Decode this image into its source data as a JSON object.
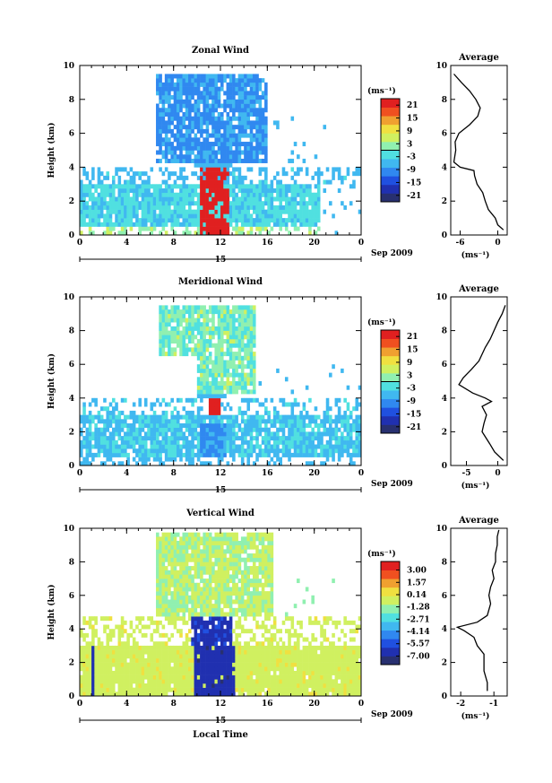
{
  "x_axis": {
    "ticks": [
      "0",
      "4",
      "8",
      "12",
      "16",
      "20",
      "0"
    ],
    "date_day": "15",
    "date_label": "Sep 2009",
    "xlabel": "Local Time"
  },
  "height_axis": {
    "label": "Height (km)",
    "ticks": [
      "0",
      "2",
      "4",
      "6",
      "8",
      "10"
    ]
  },
  "colorbar_unit": "(ms⁻¹)",
  "avg_title": "Average",
  "avg_unit": "(ms⁻¹)",
  "colors": {
    "scale": [
      "#283070",
      "#2030b0",
      "#2050e0",
      "#3088f0",
      "#40b8f0",
      "#50e0e0",
      "#90f0b0",
      "#d0f060",
      "#f0e040",
      "#f0a030",
      "#f05020",
      "#e02020"
    ]
  },
  "chart_data": [
    {
      "type": "heatmap",
      "title": "Zonal Wind",
      "ylim": [
        0,
        10
      ],
      "colorbar": {
        "ticks": [
          "21",
          "15",
          "9",
          "3",
          "-3",
          "-9",
          "-15",
          "-21"
        ],
        "range": [
          -24,
          24
        ]
      },
      "average_profile": {
        "xticks": [
          "-6",
          "0"
        ],
        "xlim": [
          -7.5,
          1.5
        ],
        "height": [
          0.3,
          0.6,
          1.0,
          1.5,
          2.0,
          2.5,
          3.0,
          3.5,
          3.8,
          4.0,
          4.3,
          5.0,
          5.5,
          6.0,
          6.5,
          7.0,
          7.5,
          8.0,
          8.5,
          9.0,
          9.5
        ],
        "value": [
          0.9,
          0.0,
          -0.4,
          -1.5,
          -2.0,
          -2.4,
          -3.3,
          -3.7,
          -3.8,
          -6.0,
          -7.0,
          -6.7,
          -6.8,
          -6.2,
          -4.5,
          -3.2,
          -2.8,
          -3.5,
          -4.5,
          -5.8,
          -7.0
        ]
      }
    },
    {
      "type": "heatmap",
      "title": "Meridional Wind",
      "ylim": [
        0,
        10
      ],
      "colorbar": {
        "ticks": [
          "21",
          "15",
          "9",
          "3",
          "-3",
          "-9",
          "-15",
          "-21"
        ],
        "range": [
          -24,
          24
        ]
      },
      "average_profile": {
        "xticks": [
          "-5",
          "0"
        ],
        "xlim": [
          -7.5,
          1.5
        ],
        "height": [
          0.3,
          0.8,
          1.3,
          2.0,
          2.5,
          3.0,
          3.5,
          3.8,
          4.0,
          4.3,
          4.8,
          5.2,
          5.7,
          6.2,
          7.0,
          7.5,
          8.0,
          8.5,
          9.0,
          9.5
        ],
        "value": [
          0.9,
          -0.5,
          -1.3,
          -2.5,
          -2.2,
          -1.8,
          -2.5,
          -1.0,
          -2.0,
          -4.0,
          -6.2,
          -5.5,
          -4.2,
          -3.0,
          -2.0,
          -1.2,
          -0.6,
          0.0,
          0.7,
          1.2
        ]
      }
    },
    {
      "type": "heatmap",
      "title": "Vertical Wind",
      "xlabel": "Local Time",
      "ylim": [
        0,
        10
      ],
      "colorbar": {
        "ticks": [
          "3.00",
          "1.57",
          "0.14",
          "-1.28",
          "-2.71",
          "-4.14",
          "-5.57",
          "-7.00"
        ],
        "range": [
          -8.0,
          4.0
        ]
      },
      "average_profile": {
        "xticks": [
          "-2",
          "-1"
        ],
        "xlim": [
          -2.3,
          -0.6
        ],
        "height": [
          0.3,
          0.8,
          1.5,
          2.0,
          2.5,
          3.0,
          3.5,
          3.9,
          4.1,
          4.4,
          4.8,
          5.5,
          6.0,
          6.5,
          7.0,
          7.5,
          8.0,
          8.5,
          9.0,
          9.5,
          9.9
        ],
        "value": [
          -1.2,
          -1.2,
          -1.3,
          -1.3,
          -1.3,
          -1.5,
          -1.6,
          -1.9,
          -2.1,
          -1.5,
          -1.2,
          -1.1,
          -1.15,
          -1.1,
          -1.0,
          -1.05,
          -0.95,
          -0.95,
          -0.9,
          -0.9,
          -0.85
        ]
      }
    }
  ]
}
